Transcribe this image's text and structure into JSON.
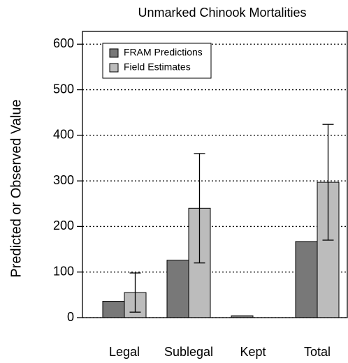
{
  "chart_data": {
    "type": "bar",
    "title": "Unmarked Chinook Mortalities",
    "ylabel": "Predicted or Observed Value",
    "categories": [
      "Legal",
      "Sublegal",
      "Kept",
      "Total"
    ],
    "series": [
      {
        "name": "FRAM Predictions",
        "color": "#787878",
        "values": [
          36,
          126,
          4,
          167
        ]
      },
      {
        "name": "Field Estimates",
        "color": "#bcbcbc",
        "values": [
          55,
          240,
          0,
          297
        ],
        "errors": [
          43,
          120,
          null,
          127
        ]
      }
    ],
    "ylim": [
      0,
      628
    ],
    "yticks": [
      0,
      100,
      200,
      300,
      400,
      500,
      600
    ],
    "grid": true,
    "legend": "top-left"
  }
}
